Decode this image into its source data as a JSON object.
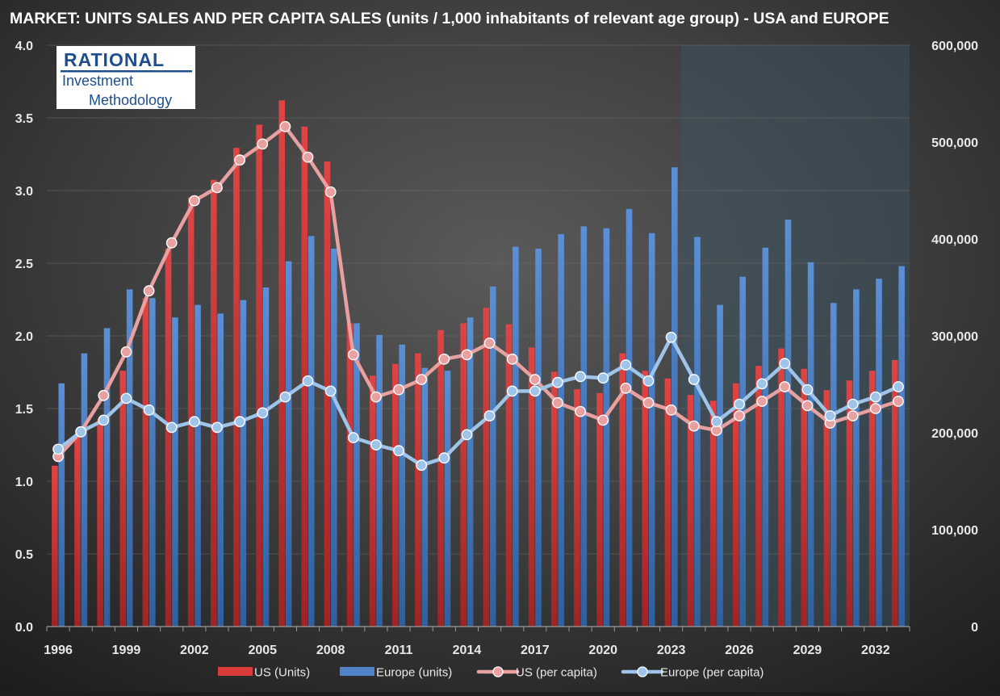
{
  "chart_data": {
    "type": "bar",
    "title": "MARKET: UNITS SALES AND PER CAPITA SALES (units / 1,000 inhabitants of relevant age group) - USA and EUROPE",
    "logo": {
      "line1": "RATIONAL",
      "line2": "Investment",
      "line3": "Methodology"
    },
    "x_tick_labels": [
      "1996",
      "1999",
      "2002",
      "2005",
      "2008",
      "2011",
      "2014",
      "2017",
      "2020",
      "2023",
      "2026",
      "2029",
      "2032"
    ],
    "years": [
      1996,
      1997,
      1998,
      1999,
      2000,
      2001,
      2002,
      2003,
      2004,
      2005,
      2006,
      2007,
      2008,
      2009,
      2010,
      2011,
      2012,
      2013,
      2014,
      2015,
      2016,
      2017,
      2018,
      2019,
      2020,
      2021,
      2022,
      2023,
      2024,
      2025,
      2026,
      2027,
      2028,
      2029,
      2030,
      2031,
      2032,
      2033
    ],
    "y_left": {
      "range": [
        0,
        4
      ],
      "ticks": [
        "0.0",
        "0.5",
        "1.0",
        "1.5",
        "2.0",
        "2.5",
        "3.0",
        "3.5",
        "4.0"
      ]
    },
    "y_right": {
      "range": [
        0,
        600000
      ],
      "ticks": [
        "0",
        "100,000",
        "200,000",
        "300,000",
        "400,000",
        "500,000",
        "600,000"
      ]
    },
    "forecast_start_year": 2024,
    "grid": true,
    "legend_position": "bottom",
    "series": [
      {
        "name": "US (Units)",
        "kind": "bar",
        "axis": "right",
        "color": "#d93a3a",
        "values": [
          166000,
          198000,
          214000,
          264000,
          339000,
          390000,
          443000,
          461000,
          494000,
          518000,
          543000,
          516000,
          480000,
          313000,
          259000,
          271000,
          282000,
          306000,
          313000,
          329000,
          312000,
          288000,
          263000,
          245000,
          241000,
          282000,
          264000,
          256000,
          239000,
          233000,
          251000,
          269000,
          287000,
          266000,
          244000,
          254000,
          264000,
          275000
        ]
      },
      {
        "name": "Europe (units)",
        "kind": "bar",
        "axis": "right",
        "color": "#4f82c9",
        "values": [
          251000,
          282000,
          308000,
          348000,
          339000,
          319000,
          332000,
          323000,
          337000,
          350000,
          377000,
          403000,
          390000,
          313000,
          301000,
          291000,
          267000,
          264000,
          319000,
          351000,
          392000,
          390000,
          405000,
          413000,
          411000,
          431000,
          406000,
          474000,
          402000,
          332000,
          361000,
          391000,
          420000,
          376000,
          334000,
          348000,
          359000,
          372000
        ]
      },
      {
        "name": "US (per capita)",
        "kind": "line",
        "axis": "left",
        "color": "#e8a0a0",
        "values": [
          1.17,
          1.34,
          1.59,
          1.89,
          2.31,
          2.64,
          2.93,
          3.02,
          3.21,
          3.32,
          3.44,
          3.23,
          2.99,
          1.87,
          1.58,
          1.63,
          1.7,
          1.84,
          1.87,
          1.95,
          1.84,
          1.7,
          1.54,
          1.48,
          1.42,
          1.64,
          1.54,
          1.49,
          1.38,
          1.35,
          1.45,
          1.55,
          1.65,
          1.52,
          1.4,
          1.45,
          1.5,
          1.55
        ]
      },
      {
        "name": "Europe (per capita)",
        "kind": "line",
        "axis": "left",
        "color": "#9ec4ea",
        "values": [
          1.22,
          1.34,
          1.42,
          1.57,
          1.49,
          1.37,
          1.41,
          1.37,
          1.41,
          1.47,
          1.58,
          1.69,
          1.62,
          1.3,
          1.25,
          1.21,
          1.11,
          1.16,
          1.32,
          1.45,
          1.62,
          1.62,
          1.68,
          1.72,
          1.71,
          1.8,
          1.69,
          1.99,
          1.7,
          1.41,
          1.53,
          1.67,
          1.81,
          1.63,
          1.45,
          1.53,
          1.58,
          1.65
        ]
      }
    ]
  }
}
